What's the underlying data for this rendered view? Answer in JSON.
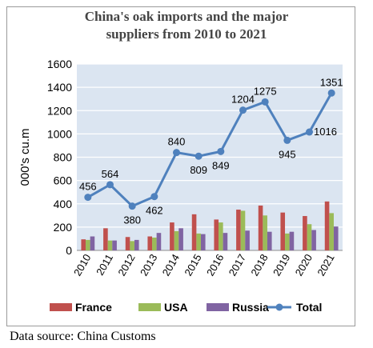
{
  "title_lines": [
    "China's oak  imports and the major",
    "suppliers from 2010 to 2021"
  ],
  "source_note": "Data source: China Customs",
  "colors": {
    "france": "#c0504d",
    "usa": "#9bbb59",
    "russia": "#8064a2",
    "total": "#4f81bd",
    "plot_bg": "#dbe5f1",
    "grid": "#ffffff"
  },
  "chart_data": {
    "type": "bar",
    "title": "China's oak  imports and the major suppliers from 2010 to 2021",
    "ylabel": "000's cu.m",
    "xlabel": "",
    "ylim": [
      0,
      1600
    ],
    "yticks": [
      "0",
      "200",
      "400",
      "600",
      "800",
      "1000",
      "1200",
      "1400",
      "1600"
    ],
    "categories": [
      "2010",
      "2011",
      "2012",
      "2013",
      "2014",
      "2015",
      "2016",
      "2017",
      "2018",
      "2019",
      "2020",
      "2021"
    ],
    "legend_position": "bottom",
    "grid": true,
    "series": [
      {
        "name": "France",
        "kind": "bar",
        "values": [
          95,
          190,
          115,
          120,
          240,
          310,
          265,
          350,
          385,
          325,
          295,
          420
        ]
      },
      {
        "name": "USA",
        "kind": "bar",
        "values": [
          90,
          85,
          80,
          110,
          165,
          145,
          240,
          340,
          300,
          145,
          225,
          320
        ]
      },
      {
        "name": "Russia",
        "kind": "bar",
        "values": [
          120,
          85,
          90,
          150,
          190,
          140,
          150,
          170,
          160,
          160,
          175,
          205
        ]
      },
      {
        "name": "Total",
        "kind": "line",
        "values": [
          456,
          564,
          380,
          462,
          840,
          809,
          849,
          1204,
          1275,
          945,
          1016,
          1351
        ],
        "labels": [
          "456",
          "564",
          "380",
          "462",
          "840",
          "809",
          "849",
          "1204",
          "1275",
          "945",
          "1016",
          "1351"
        ]
      }
    ]
  }
}
